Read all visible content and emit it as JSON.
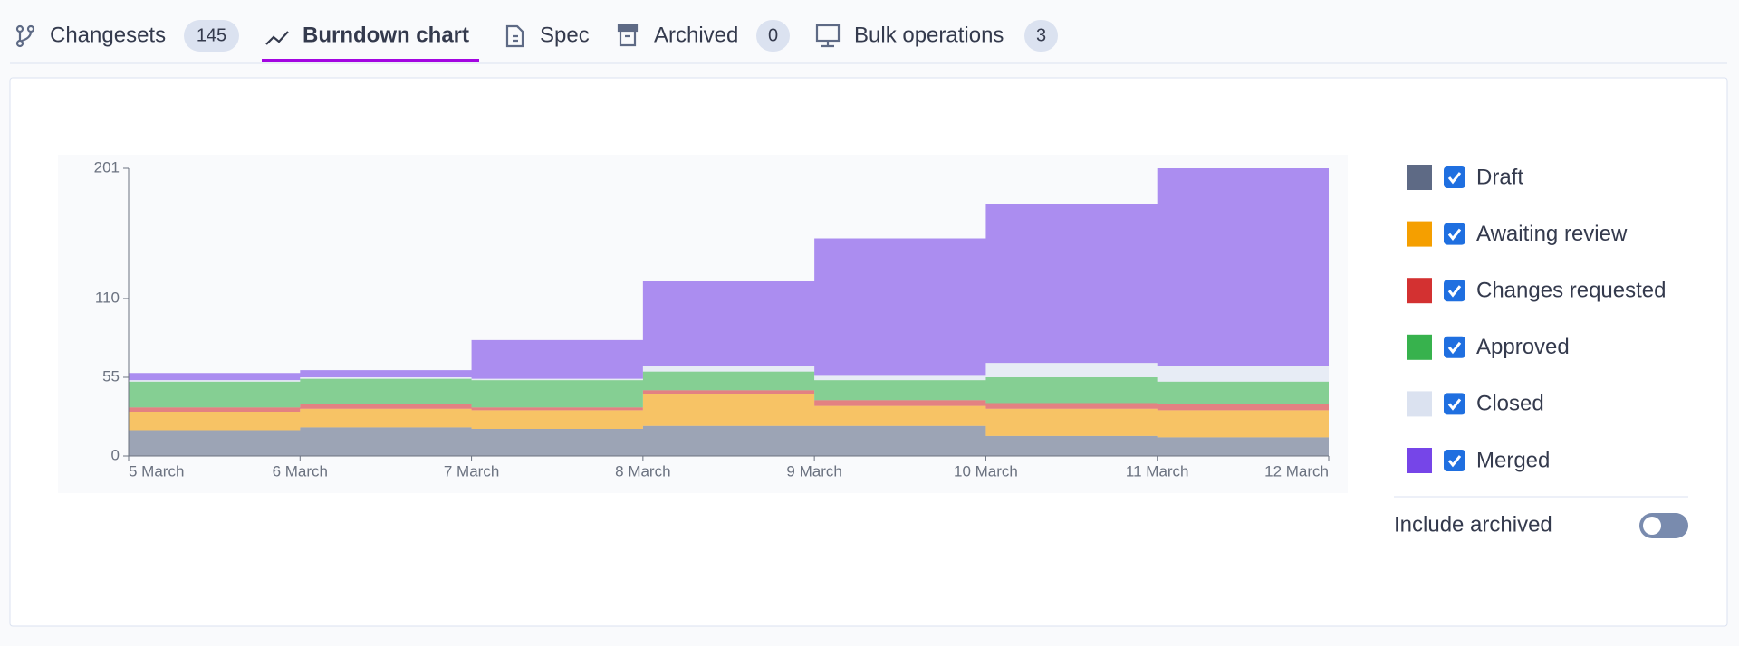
{
  "tabs": [
    {
      "label": "Changesets",
      "badge": 145
    },
    {
      "label": "Burndown chart"
    },
    {
      "label": "Spec"
    },
    {
      "label": "Archived",
      "badge": 0
    },
    {
      "label": "Bulk operations",
      "badge": 3
    }
  ],
  "chart_data": {
    "type": "step-area-stacked",
    "categories": [
      "5 March",
      "6 March",
      "7 March",
      "8 March",
      "9 March",
      "10 March",
      "11 March",
      "12 March"
    ],
    "series": [
      {
        "name": "Draft",
        "color": "#5e6a85",
        "values": [
          18,
          20,
          19,
          21,
          21,
          14,
          13,
          13
        ]
      },
      {
        "name": "Awaiting review",
        "color": "#f59f00",
        "values": [
          13,
          13,
          13,
          22,
          14,
          19,
          19,
          19
        ]
      },
      {
        "name": "Changes requested",
        "color": "#d33131",
        "values": [
          3,
          3,
          2,
          3,
          4,
          4,
          4,
          4
        ]
      },
      {
        "name": "Approved",
        "color": "#37b24d",
        "values": [
          18,
          18,
          19,
          13,
          14,
          18,
          16,
          16
        ]
      },
      {
        "name": "Closed",
        "color": "#dbe2f0",
        "values": [
          1,
          1,
          1,
          4,
          3,
          10,
          11,
          11
        ]
      },
      {
        "name": "Merged",
        "color": "#7645e8",
        "values": [
          5,
          5,
          27,
          59,
          96,
          111,
          138,
          138
        ]
      }
    ],
    "ylim": [
      0,
      201
    ],
    "yticks": [
      0,
      55,
      110,
      201
    ]
  },
  "toggle": {
    "label": "Include archived",
    "on": false
  }
}
